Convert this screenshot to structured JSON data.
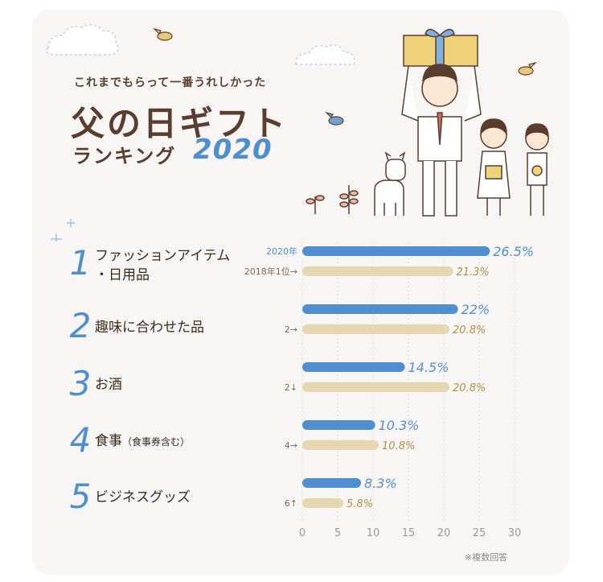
{
  "header": {
    "subtitle": "これまでもらって一番うれしかった",
    "title": "父の日ギフト",
    "ranking_word": "ランキング",
    "year": "2020"
  },
  "ranks": [
    {
      "number": "1",
      "label_line1": "ファッションアイテム",
      "label_line2": "・日用品",
      "label_note": ""
    },
    {
      "number": "2",
      "label_line1": "趣味に合わせた品",
      "label_line2": "",
      "label_note": ""
    },
    {
      "number": "3",
      "label_line1": "お酒",
      "label_line2": "",
      "label_note": ""
    },
    {
      "number": "4",
      "label_line1": "食事",
      "label_line2": "",
      "label_note": "（食事券含む）"
    },
    {
      "number": "5",
      "label_line1": "ビジネスグッズ",
      "label_line2": "",
      "label_note": ""
    }
  ],
  "footnote": "※複数回答",
  "colors": {
    "series_2020": "#4f8fd0",
    "series_2018": "#e6d6b0",
    "title_brown": "#5a3d2e",
    "card_bg": "#f7f6f4"
  },
  "chart_data": {
    "type": "bar",
    "orientation": "horizontal",
    "categories": [
      "ファッションアイテム・日用品",
      "趣味に合わせた品",
      "お酒",
      "食事（食事券含む）",
      "ビジネスグッズ"
    ],
    "series": [
      {
        "name": "2020年",
        "values": [
          26.5,
          22,
          14.5,
          10.3,
          8.3
        ],
        "value_labels": [
          "26.5%",
          "22%",
          "14.5%",
          "10.3%",
          "8.3%"
        ]
      },
      {
        "name": "2018年",
        "values": [
          21.3,
          20.8,
          20.8,
          10.8,
          5.8
        ],
        "value_labels": [
          "21.3%",
          "20.8%",
          "20.8%",
          "10.8%",
          "5.8%"
        ]
      }
    ],
    "series_row_labels": [
      {
        "top": "2020年",
        "bottom": "2018年1位→"
      },
      {
        "top": "",
        "bottom": "2→"
      },
      {
        "top": "",
        "bottom": "2↓"
      },
      {
        "top": "",
        "bottom": "4→"
      },
      {
        "top": "",
        "bottom": "6↑"
      }
    ],
    "xlim": [
      0,
      30
    ],
    "xticks": [
      0,
      5,
      10,
      15,
      20,
      25,
      30
    ],
    "grid": true
  }
}
